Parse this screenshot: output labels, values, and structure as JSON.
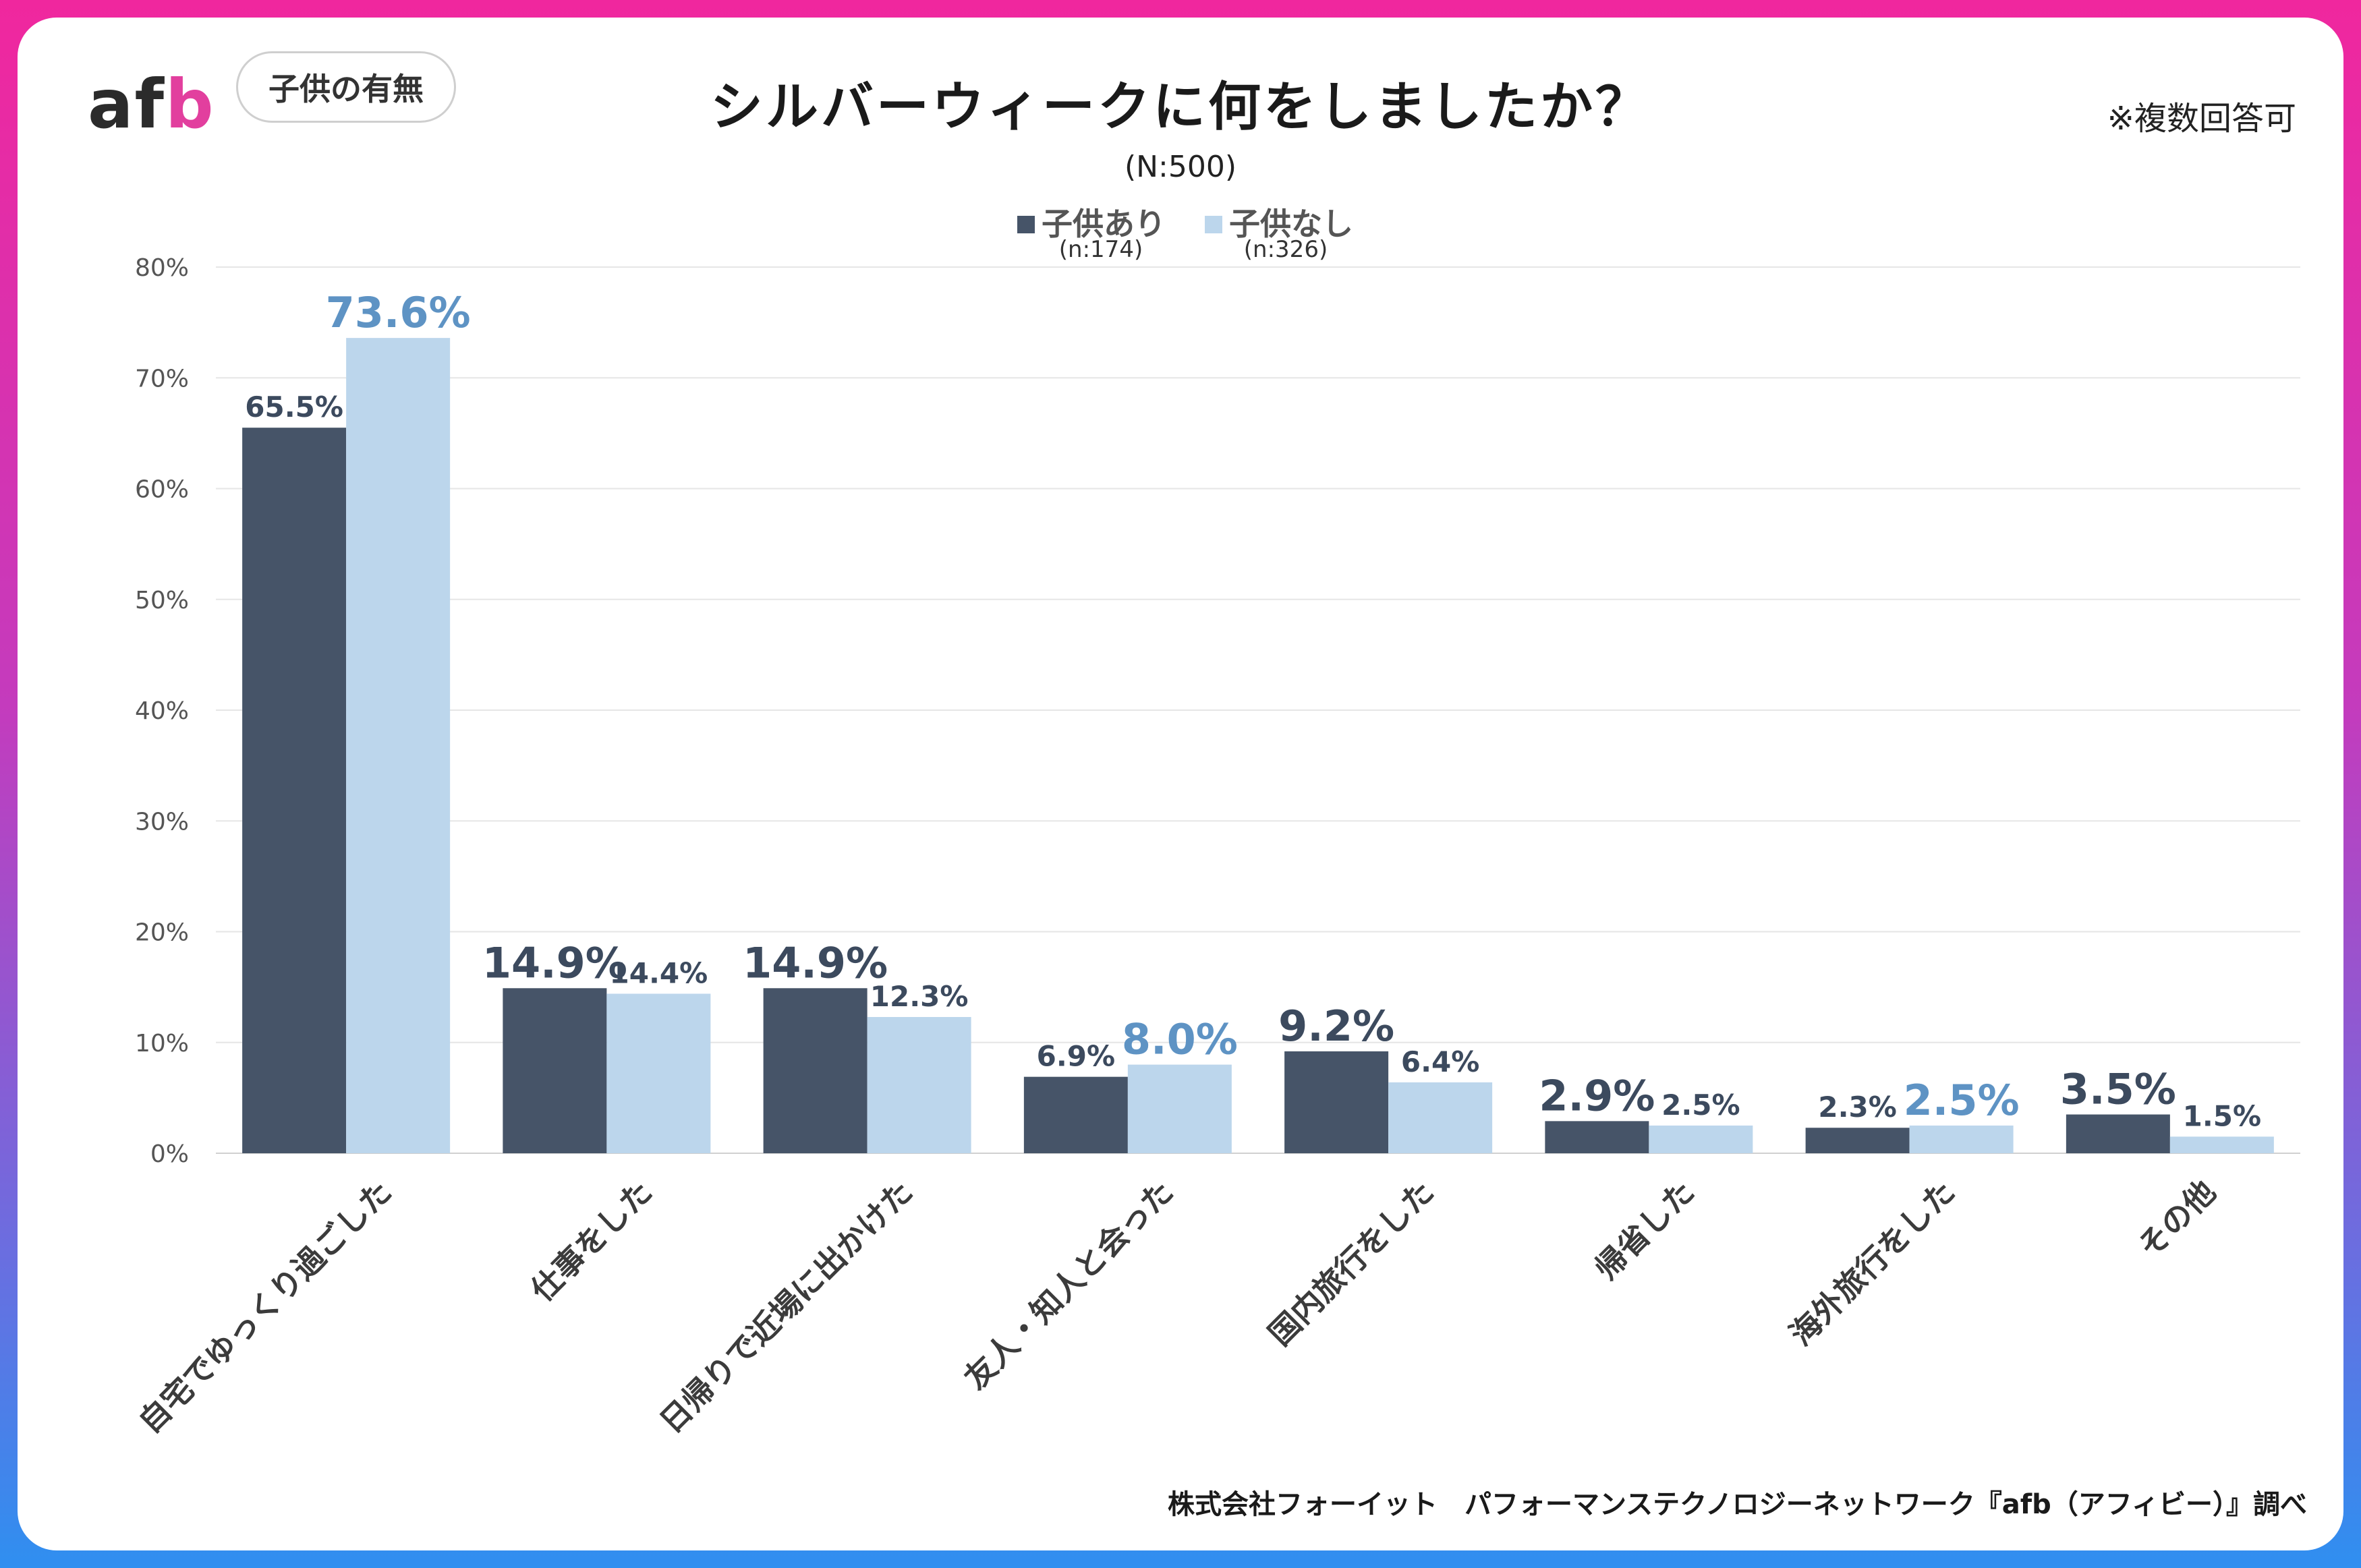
{
  "header": {
    "logo_text_main": "af",
    "logo_text_accent": "b",
    "badge": "子供の有無",
    "title": "シルバーウィークに何をしましたか？",
    "subtitle": "(N:500)",
    "note": "※複数回答可"
  },
  "legend": [
    {
      "label": "子供あり",
      "n": "(n:174)",
      "color": "#465468"
    },
    {
      "label": "子供なし",
      "n": "(n:326)",
      "color": "#bcd6ec"
    }
  ],
  "footer": {
    "source": "株式会社フォーイット　パフォーマンステクノロジーネットワーク『afb（アフィビー）』調べ"
  },
  "colors": {
    "series1": "#465468",
    "series2": "#bcd6ec",
    "highlight2": "#5e93c4",
    "grid": "#e6e6e6"
  },
  "chart_data": {
    "type": "bar",
    "categories": [
      "自宅でゆっくり過ごした",
      "仕事をした",
      "日帰りで近場に出かけた",
      "友人・知人と会った",
      "国内旅行をした",
      "帰省した",
      "海外旅行をした",
      "その他"
    ],
    "series": [
      {
        "name": "子供あり",
        "values": [
          65.5,
          14.9,
          14.9,
          6.9,
          9.2,
          2.9,
          2.3,
          3.5
        ]
      },
      {
        "name": "子供なし",
        "values": [
          73.6,
          14.4,
          12.3,
          8.0,
          6.4,
          2.5,
          2.5,
          1.5
        ]
      }
    ],
    "data_labels": [
      [
        "65.5%",
        "14.9%",
        "14.9%",
        "6.9%",
        "9.2%",
        "2.9%",
        "2.3%",
        "3.5%"
      ],
      [
        "73.6%",
        "14.4%",
        "12.3%",
        "8.0%",
        "6.4%",
        "2.5%",
        "2.5%",
        "1.5%"
      ]
    ],
    "highlight": [
      [
        false,
        true,
        true,
        false,
        true,
        true,
        false,
        true
      ],
      [
        true,
        false,
        false,
        true,
        false,
        false,
        true,
        false
      ]
    ],
    "yticks": [
      "0%",
      "10%",
      "20%",
      "30%",
      "40%",
      "50%",
      "60%",
      "70%",
      "80%"
    ],
    "ylim": [
      0,
      80
    ],
    "title": "シルバーウィークに何をしましたか？",
    "xlabel": "",
    "ylabel": ""
  }
}
